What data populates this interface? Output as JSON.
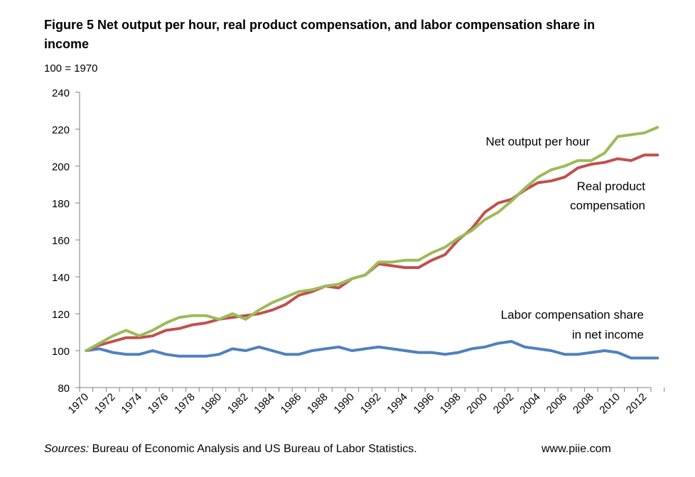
{
  "title": "Figure 5 Net output per hour, real product compensation, and labor compensation share in income",
  "subtitle": "100  = 1970",
  "sources_label": "Sources:",
  "sources_text": " Bureau of Economic Analysis and US Bureau of Labor Statistics.",
  "website": "www.piie.com",
  "chart_data": {
    "type": "line",
    "title": "Figure 5 Net output per hour, real product compensation, and labor compensation share in income",
    "ylabel": "100 = 1970",
    "xlabel": "",
    "ylim": [
      80,
      240
    ],
    "yticks": [
      80,
      100,
      120,
      140,
      160,
      180,
      200,
      220,
      240
    ],
    "xticks": [
      1970,
      1972,
      1974,
      1976,
      1978,
      1980,
      1982,
      1984,
      1986,
      1988,
      1990,
      1992,
      1994,
      1996,
      1998,
      2000,
      2002,
      2004,
      2006,
      2008,
      2010,
      2012
    ],
    "x": [
      1970,
      1971,
      1972,
      1973,
      1974,
      1975,
      1976,
      1977,
      1978,
      1979,
      1980,
      1981,
      1982,
      1983,
      1984,
      1985,
      1986,
      1987,
      1988,
      1989,
      1990,
      1991,
      1992,
      1993,
      1994,
      1995,
      1996,
      1997,
      1998,
      1999,
      2000,
      2001,
      2002,
      2003,
      2004,
      2005,
      2006,
      2007,
      2008,
      2009,
      2010,
      2011,
      2012,
      2013
    ],
    "grid": false,
    "series": [
      {
        "name": "Net output per hour",
        "color": "#9bbb59",
        "values": [
          100,
          104,
          108,
          111,
          108,
          111,
          115,
          118,
          119,
          119,
          117,
          120,
          117,
          122,
          126,
          129,
          132,
          133,
          135,
          136,
          139,
          141,
          148,
          148,
          149,
          149,
          153,
          156,
          161,
          165,
          171,
          175,
          181,
          188,
          194,
          198,
          200,
          203,
          203,
          207,
          216,
          217,
          218,
          221
        ]
      },
      {
        "name": "Real product compensation",
        "color": "#c0504d",
        "values": [
          100,
          103,
          105,
          107,
          107,
          108,
          111,
          112,
          114,
          115,
          117,
          118,
          119,
          120,
          122,
          125,
          130,
          132,
          135,
          134,
          139,
          141,
          147,
          146,
          145,
          145,
          149,
          152,
          160,
          166,
          175,
          180,
          182,
          187,
          191,
          192,
          194,
          199,
          201,
          202,
          204,
          203,
          206,
          206
        ]
      },
      {
        "name": "Labor compensation share in net income",
        "color": "#4f81bd",
        "values": [
          100,
          101,
          99,
          98,
          98,
          100,
          98,
          97,
          97,
          97,
          98,
          101,
          100,
          102,
          100,
          98,
          98,
          100,
          101,
          102,
          100,
          101,
          102,
          101,
          100,
          99,
          99,
          98,
          99,
          101,
          102,
          104,
          105,
          102,
          101,
          100,
          98,
          98,
          99,
          100,
          99,
          96,
          96,
          96
        ]
      }
    ],
    "annotations": [
      {
        "text": "Net output per hour",
        "series": "Net output per hour"
      },
      {
        "text": "Real product",
        "series": "Real product compensation"
      },
      {
        "text": "compensation",
        "series": "Real product compensation"
      },
      {
        "text": "Labor compensation share",
        "series": "Labor compensation share in net income"
      },
      {
        "text": "in net income",
        "series": "Labor compensation share in net income"
      }
    ]
  }
}
